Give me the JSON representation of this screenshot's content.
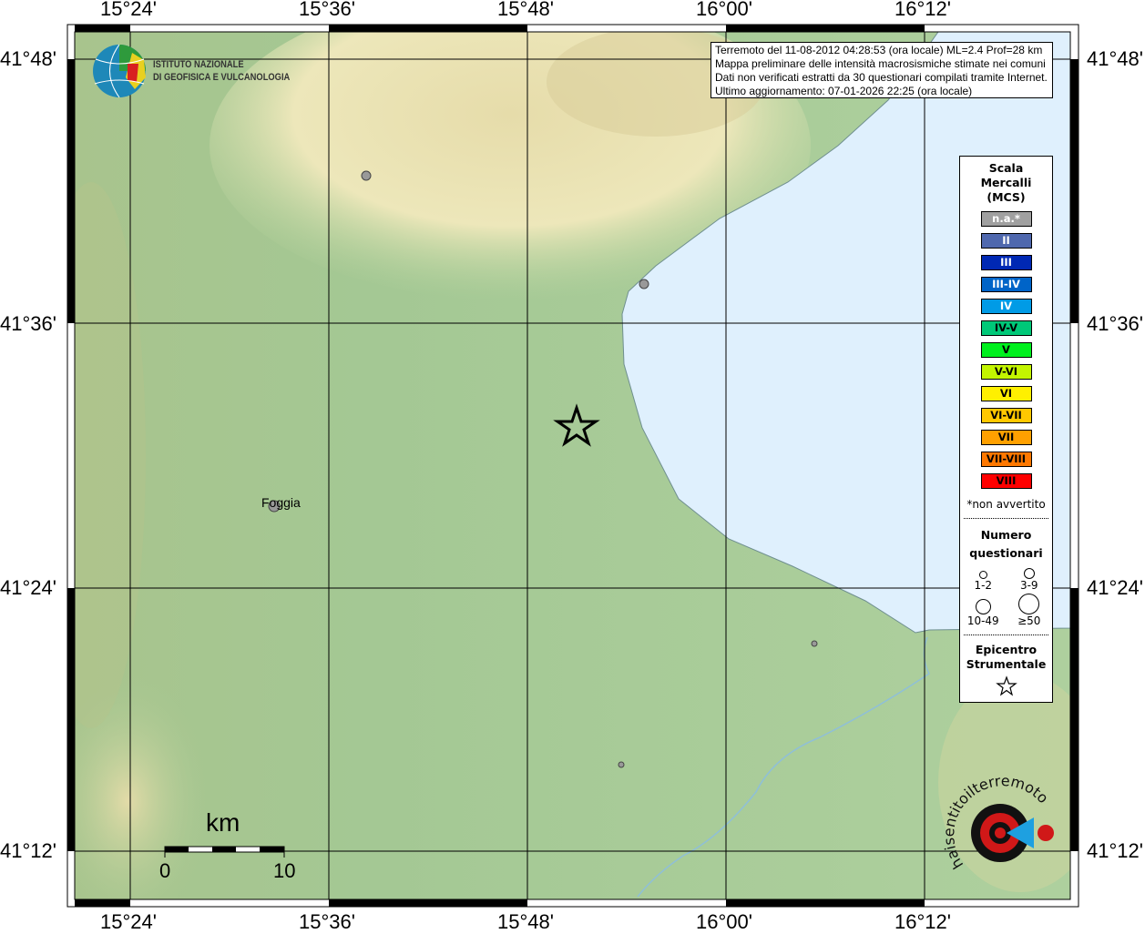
{
  "map": {
    "lon_ticks": [
      "15°24'",
      "15°36'",
      "15°48'",
      "16°00'",
      "16°12'"
    ],
    "lat_ticks": [
      "41°48'",
      "41°36'",
      "41°24'",
      "41°12'"
    ],
    "colors": {
      "sea": "#dff0fd",
      "lowland": "#a8cc98",
      "hills": "#e8e0b0"
    }
  },
  "info_box": {
    "lines": [
      "Terremoto del 11-08-2012 04:28:53 (ora locale) ML=2.4 Prof=28 km",
      "Mappa preliminare delle intensità macrosismiche stimate nei comuni",
      "Dati non verificati estratti da 30 questionari compilati tramite Internet.",
      "Ultimo aggiornamento: 07-01-2026 22:25 (ora locale)"
    ]
  },
  "ingv_logo": {
    "line1": "ISTITUTO NAZIONALE",
    "line2": "DI GEOFISICA E VULCANOLOGIA"
  },
  "places": [
    {
      "name": "Foggia"
    }
  ],
  "scale_bar": {
    "unit": "km",
    "start": "0",
    "end": "10"
  },
  "legend": {
    "title": [
      "Scala",
      "Mercalli",
      "(MCS)"
    ],
    "classes": [
      {
        "label": "n.a.*",
        "color": "#a0a0a0",
        "text": "#ffffff"
      },
      {
        "label": "II",
        "color": "#4f68ae",
        "text": "#ffffff"
      },
      {
        "label": "III",
        "color": "#0028b4",
        "text": "#ffffff"
      },
      {
        "label": "III-IV",
        "color": "#0064c8",
        "text": "#ffffff"
      },
      {
        "label": "IV",
        "color": "#009be6",
        "text": "#ffffff"
      },
      {
        "label": "IV-V",
        "color": "#00c878",
        "text": "#000000"
      },
      {
        "label": "V",
        "color": "#00f01e",
        "text": "#000000"
      },
      {
        "label": "V-VI",
        "color": "#c3f500",
        "text": "#000000"
      },
      {
        "label": "VI",
        "color": "#fff000",
        "text": "#000000"
      },
      {
        "label": "VI-VII",
        "color": "#ffc800",
        "text": "#000000"
      },
      {
        "label": "VII",
        "color": "#ffa000",
        "text": "#000000"
      },
      {
        "label": "VII-VIII",
        "color": "#ff7800",
        "text": "#000000"
      },
      {
        "label": "VIII",
        "color": "#ff0000",
        "text": "#000000"
      }
    ],
    "note": "*non avvertito",
    "questionnaires_title": [
      "Numero",
      "questionari"
    ],
    "questionnaire_classes": [
      "1-2",
      "3-9",
      "10-49",
      "≥50"
    ],
    "epicenter_title": [
      "Epicentro",
      "Strumentale"
    ]
  },
  "hsit_logo": {
    "text": "haisentitoilterremoto.it www."
  }
}
